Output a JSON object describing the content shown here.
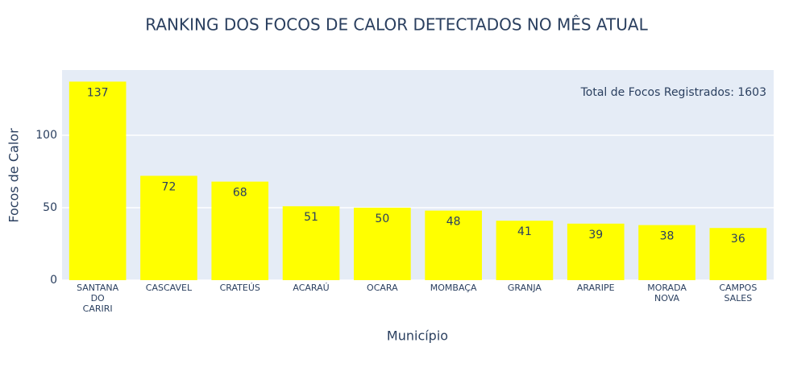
{
  "chart_data": {
    "type": "bar",
    "title": "RANKING DOS FOCOS DE CALOR DETECTADOS NO MÊS ATUAL",
    "x_label": "Município",
    "y_label": "Focos de Calor",
    "annotation": "Total de Focos Registrados: 1603",
    "categories": [
      "SANTANA DO CARIRI",
      "CASCAVEL",
      "CRATEÚS",
      "ACARAÚ",
      "OCARA",
      "MOMBAÇA",
      "GRANJA",
      "ARARIPE",
      "MORADA NOVA",
      "CAMPOS SALES"
    ],
    "values": [
      137,
      72,
      68,
      51,
      50,
      48,
      41,
      39,
      38,
      36
    ],
    "color": "#ffff00",
    "ylim": [
      0,
      145
    ],
    "yticks": [
      0,
      50,
      100
    ],
    "grid": true
  }
}
